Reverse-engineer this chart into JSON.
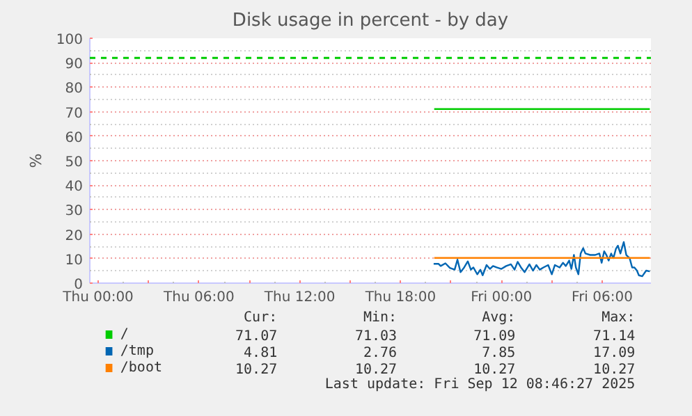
{
  "chart_data": {
    "type": "line",
    "title": "Disk usage in percent - by day",
    "ylabel": "%",
    "xlim": [
      "2025-09-10T23:30",
      "2025-09-12T08:54"
    ],
    "xticks": [
      {
        "value": "2025-09-11T00:00",
        "label": "Thu 00:00"
      },
      {
        "value": "2025-09-11T03:00",
        "label": null
      },
      {
        "value": "2025-09-11T06:00",
        "label": "Thu 06:00"
      },
      {
        "value": "2025-09-11T09:00",
        "label": null
      },
      {
        "value": "2025-09-11T12:00",
        "label": "Thu 12:00"
      },
      {
        "value": "2025-09-11T15:00",
        "label": null
      },
      {
        "value": "2025-09-11T18:00",
        "label": "Thu 18:00"
      },
      {
        "value": "2025-09-11T21:00",
        "label": null
      },
      {
        "value": "2025-09-12T00:00",
        "label": "Fri 00:00"
      },
      {
        "value": "2025-09-12T03:00",
        "label": null
      },
      {
        "value": "2025-09-12T06:00",
        "label": "Fri 06:00"
      }
    ],
    "ylim": [
      0,
      100
    ],
    "yticks": [
      0,
      10,
      20,
      30,
      40,
      50,
      60,
      70,
      80,
      90,
      100
    ],
    "grid": true,
    "legend": "bottom",
    "line_style": "solid",
    "marker": "none",
    "ref_lines": [
      {
        "axis": "y",
        "value": 92,
        "label": null,
        "color": "#00cc00",
        "line_style": "dashed"
      }
    ],
    "series": [
      {
        "name": "/",
        "color": "#00cc00",
        "x": [
          "2025-09-11T20:00",
          "2025-09-12T06:48",
          "2025-09-12T08:50"
        ],
        "values": [
          71.1,
          71.1,
          71.1
        ]
      },
      {
        "name": "/tmp",
        "color": "#0066b3",
        "x": [
          "2025-09-11T19:58",
          "2025-09-11T20:15",
          "2025-09-11T20:23",
          "2025-09-11T20:40",
          "2025-09-11T20:56",
          "2025-09-11T21:13",
          "2025-09-11T21:23",
          "2025-09-11T21:34",
          "2025-09-11T21:47",
          "2025-09-11T22:00",
          "2025-09-11T22:11",
          "2025-09-11T22:20",
          "2025-09-11T22:34",
          "2025-09-11T22:45",
          "2025-09-11T22:53",
          "2025-09-11T23:07",
          "2025-09-11T23:19",
          "2025-09-11T23:30",
          "2025-09-11T23:43",
          "2025-09-12T00:00",
          "2025-09-12T00:17",
          "2025-09-12T00:34",
          "2025-09-12T00:47",
          "2025-09-12T00:58",
          "2025-09-12T01:10",
          "2025-09-12T01:23",
          "2025-09-12T01:40",
          "2025-09-12T01:53",
          "2025-09-12T02:05",
          "2025-09-12T02:17",
          "2025-09-12T02:30",
          "2025-09-12T02:47",
          "2025-09-12T03:00",
          "2025-09-12T03:11",
          "2025-09-12T03:28",
          "2025-09-12T03:40",
          "2025-09-12T03:50",
          "2025-09-12T04:02",
          "2025-09-12T04:10",
          "2025-09-12T04:19",
          "2025-09-12T04:26",
          "2025-09-12T04:35",
          "2025-09-12T04:43",
          "2025-09-12T04:52",
          "2025-09-12T05:00",
          "2025-09-12T05:17",
          "2025-09-12T05:34",
          "2025-09-12T05:50",
          "2025-09-12T05:58",
          "2025-09-12T06:07",
          "2025-09-12T06:15",
          "2025-09-12T06:23",
          "2025-09-12T06:32",
          "2025-09-12T06:40",
          "2025-09-12T06:49",
          "2025-09-12T06:56",
          "2025-09-12T07:05",
          "2025-09-12T07:17",
          "2025-09-12T07:26",
          "2025-09-12T07:38",
          "2025-09-12T07:47",
          "2025-09-12T07:55",
          "2025-09-12T08:04",
          "2025-09-12T08:11",
          "2025-09-12T08:23",
          "2025-09-12T08:37",
          "2025-09-12T08:50"
        ],
        "values": [
          7.9,
          7.9,
          7.0,
          8.1,
          6.2,
          5.5,
          9.6,
          4.5,
          6.4,
          8.9,
          5.5,
          6.4,
          3.6,
          5.5,
          3.2,
          7.4,
          5.8,
          7.0,
          6.4,
          5.8,
          7.0,
          7.7,
          5.5,
          8.7,
          6.4,
          4.5,
          7.7,
          5.1,
          7.4,
          5.5,
          6.4,
          7.4,
          3.6,
          7.4,
          6.4,
          8.3,
          7.0,
          9.2,
          5.8,
          11.5,
          6.4,
          3.6,
          12.1,
          14.3,
          12.1,
          11.5,
          11.5,
          12.1,
          8.3,
          13.0,
          11.5,
          9.2,
          12.1,
          10.2,
          14.0,
          15.3,
          12.1,
          16.8,
          11.5,
          10.2,
          6.4,
          6.4,
          5.1,
          3.2,
          2.8,
          5.1,
          4.8
        ]
      },
      {
        "name": "/boot",
        "color": "#ff8000",
        "x": [
          "2025-09-11T20:00",
          "2025-09-12T08:50"
        ],
        "values": [
          10.3,
          10.3
        ]
      }
    ],
    "annotations": [
      "Cur:",
      "Min:",
      "Avg:",
      "Max:",
      "71.07",
      "71.03",
      "71.09",
      "71.14",
      "4.81",
      "2.76",
      "7.85",
      "17.09",
      "10.27",
      "10.27",
      "10.27",
      "10.27",
      "Last update: Fri Sep 12 08:46:27 2025"
    ]
  }
}
